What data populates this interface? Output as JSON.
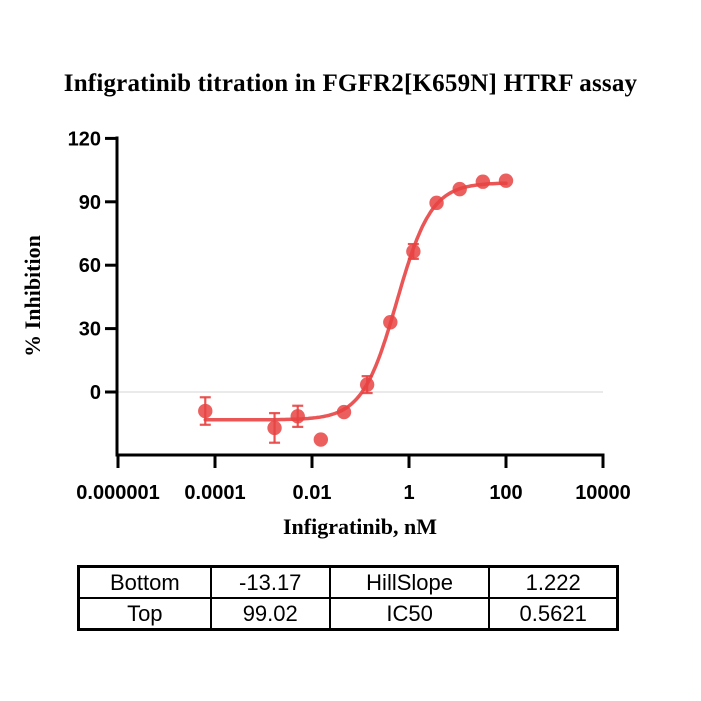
{
  "title": "Infigratinib titration in FGFR2[K659N] HTRF assay",
  "axes": {
    "x_label": "Infigratinib, nM",
    "y_label": "% Inhibition",
    "x_tick_labels": [
      "0.000001",
      "0.0001",
      "0.01",
      "1",
      "100",
      "10000"
    ],
    "y_tick_labels": [
      "0",
      "30",
      "60",
      "90",
      "120"
    ]
  },
  "chart_data": {
    "type": "scatter",
    "title": "Infigratinib titration in FGFR2[K659N] HTRF assay",
    "xlabel": "Infigratinib, nM",
    "ylabel": "% Inhibition",
    "x_scale": "log10",
    "xlim": [
      1e-06,
      10000
    ],
    "ylim": [
      -30,
      120
    ],
    "x_ticks": [
      1e-06,
      0.0001,
      0.01,
      1,
      100,
      10000
    ],
    "y_ticks": [
      0,
      30,
      60,
      90,
      120
    ],
    "grid": false,
    "zero_reference_line": true,
    "legend": "none",
    "series": [
      {
        "name": "Infigratinib",
        "marker": "circle",
        "color": "#e84343",
        "x": [
          6.3e-05,
          0.00169,
          0.00508,
          0.0152,
          0.0457,
          0.137,
          0.412,
          1.23,
          3.7,
          11.1,
          33.3,
          100
        ],
        "y": [
          -9,
          -17,
          -11.5,
          -22.5,
          -9.5,
          3.5,
          33,
          66.5,
          89.5,
          96,
          99.5,
          100
        ],
        "y_err": [
          6.5,
          7,
          5,
          null,
          null,
          4,
          null,
          3.5,
          null,
          null,
          null,
          null
        ]
      }
    ],
    "fit_curve": {
      "model": "four-parameter logistic (dose-response)",
      "bottom": -13.17,
      "top": 99.02,
      "hillslope": 1.222,
      "ic50": 0.5621,
      "x_range": [
        6.3e-05,
        100
      ]
    }
  },
  "results_table": {
    "rows": [
      [
        "Bottom",
        "-13.17",
        "HillSlope",
        "1.222"
      ],
      [
        "Top",
        "99.02",
        "IC50",
        "0.5621"
      ]
    ]
  },
  "colors": {
    "series_red": "#e84343",
    "axis_black": "#000000",
    "zero_line_gray": "#e4e4e4",
    "background": "#ffffff"
  }
}
